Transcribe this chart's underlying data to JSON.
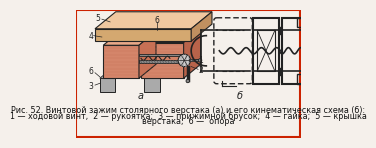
{
  "border_color": "#cc2200",
  "bg_color": "#f5f0eb",
  "caption_line1": "Рис. 52. Винтовой зажим столярного верстака (а) и его кинематическая схема (б):",
  "caption_line2": "1 — ходовой винт,  2 — рукоятка;  3 — прижимной брусок;  4 — гайка;  5 — крышка",
  "caption_line3": "верстака;  6 —  опора",
  "caption_fontsize": 5.8,
  "wood_light": "#e8a888",
  "wood_mid": "#d4856a",
  "wood_dark": "#b8634a",
  "wood_top": "#f0c8a0",
  "metal_gray": "#999999",
  "dark": "#222222",
  "label_fontsize": 7.0,
  "num_fontsize": 5.5
}
